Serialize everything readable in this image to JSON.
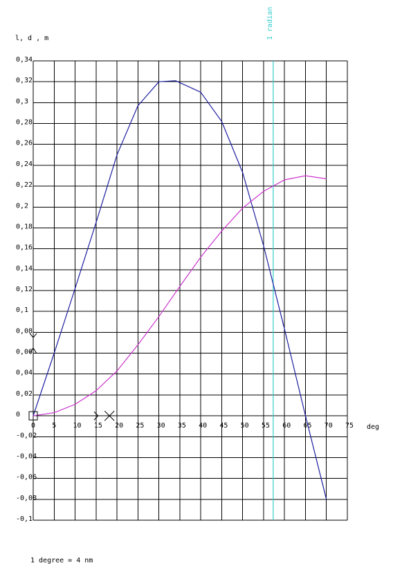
{
  "chart_data": {
    "type": "line",
    "title": "",
    "ylabel": "l, d , m",
    "xlabel": "deg",
    "xlim": [
      0,
      75
    ],
    "ylim": [
      -0.1,
      0.34
    ],
    "x_ticks": [
      0,
      5,
      10,
      15,
      20,
      25,
      30,
      35,
      40,
      45,
      50,
      55,
      60,
      65,
      70,
      75
    ],
    "x_tick_labels": [
      "0",
      "5",
      "10",
      "15",
      "20",
      "25",
      "30",
      "35",
      "40",
      "45",
      "50",
      "55",
      "60",
      "65",
      "70",
      "75"
    ],
    "y_ticks": [
      -0.1,
      -0.08,
      -0.06,
      -0.04,
      -0.02,
      0,
      0.02,
      0.04,
      0.06,
      0.08,
      0.1,
      0.12,
      0.14,
      0.16,
      0.18,
      0.2,
      0.22,
      0.24,
      0.26,
      0.28,
      0.3,
      0.32,
      0.34
    ],
    "y_tick_labels": [
      "-0,1",
      "-0,08",
      "-0,06",
      "-0,04",
      "-0,02",
      "0",
      "0,02",
      "0,04",
      "0,06",
      "0,08",
      "0,1",
      "0,12",
      "0,14",
      "0,16",
      "0,18",
      "0,2",
      "0,22",
      "0,24",
      "0,26",
      "0,28",
      "0,3",
      "0,32",
      "0,34"
    ],
    "grid": true,
    "series": [
      {
        "color": "#1c1ca0",
        "x": [
          0,
          5,
          10,
          15,
          20,
          25,
          30,
          34,
          40,
          45,
          50,
          55,
          60,
          65,
          70
        ],
        "values": [
          0,
          0.06,
          0.122,
          0.185,
          0.25,
          0.297,
          0.32,
          0.321,
          0.31,
          0.282,
          0.233,
          0.163,
          0.083,
          0.0,
          -0.08
        ]
      },
      {
        "color": "#cc33cc",
        "x": [
          0,
          5,
          10,
          15,
          20,
          25,
          30,
          35,
          40,
          45,
          50,
          55,
          60,
          65,
          70
        ],
        "values": [
          0,
          0.003,
          0.011,
          0.024,
          0.043,
          0.068,
          0.095,
          0.124,
          0.152,
          0.177,
          0.199,
          0.215,
          0.226,
          0.23,
          0.227
        ]
      }
    ],
    "reference_line": {
      "x": 57.3,
      "label": "1 radian",
      "color": "#33cccc"
    },
    "footnote": "1 degree = 4 nm"
  }
}
